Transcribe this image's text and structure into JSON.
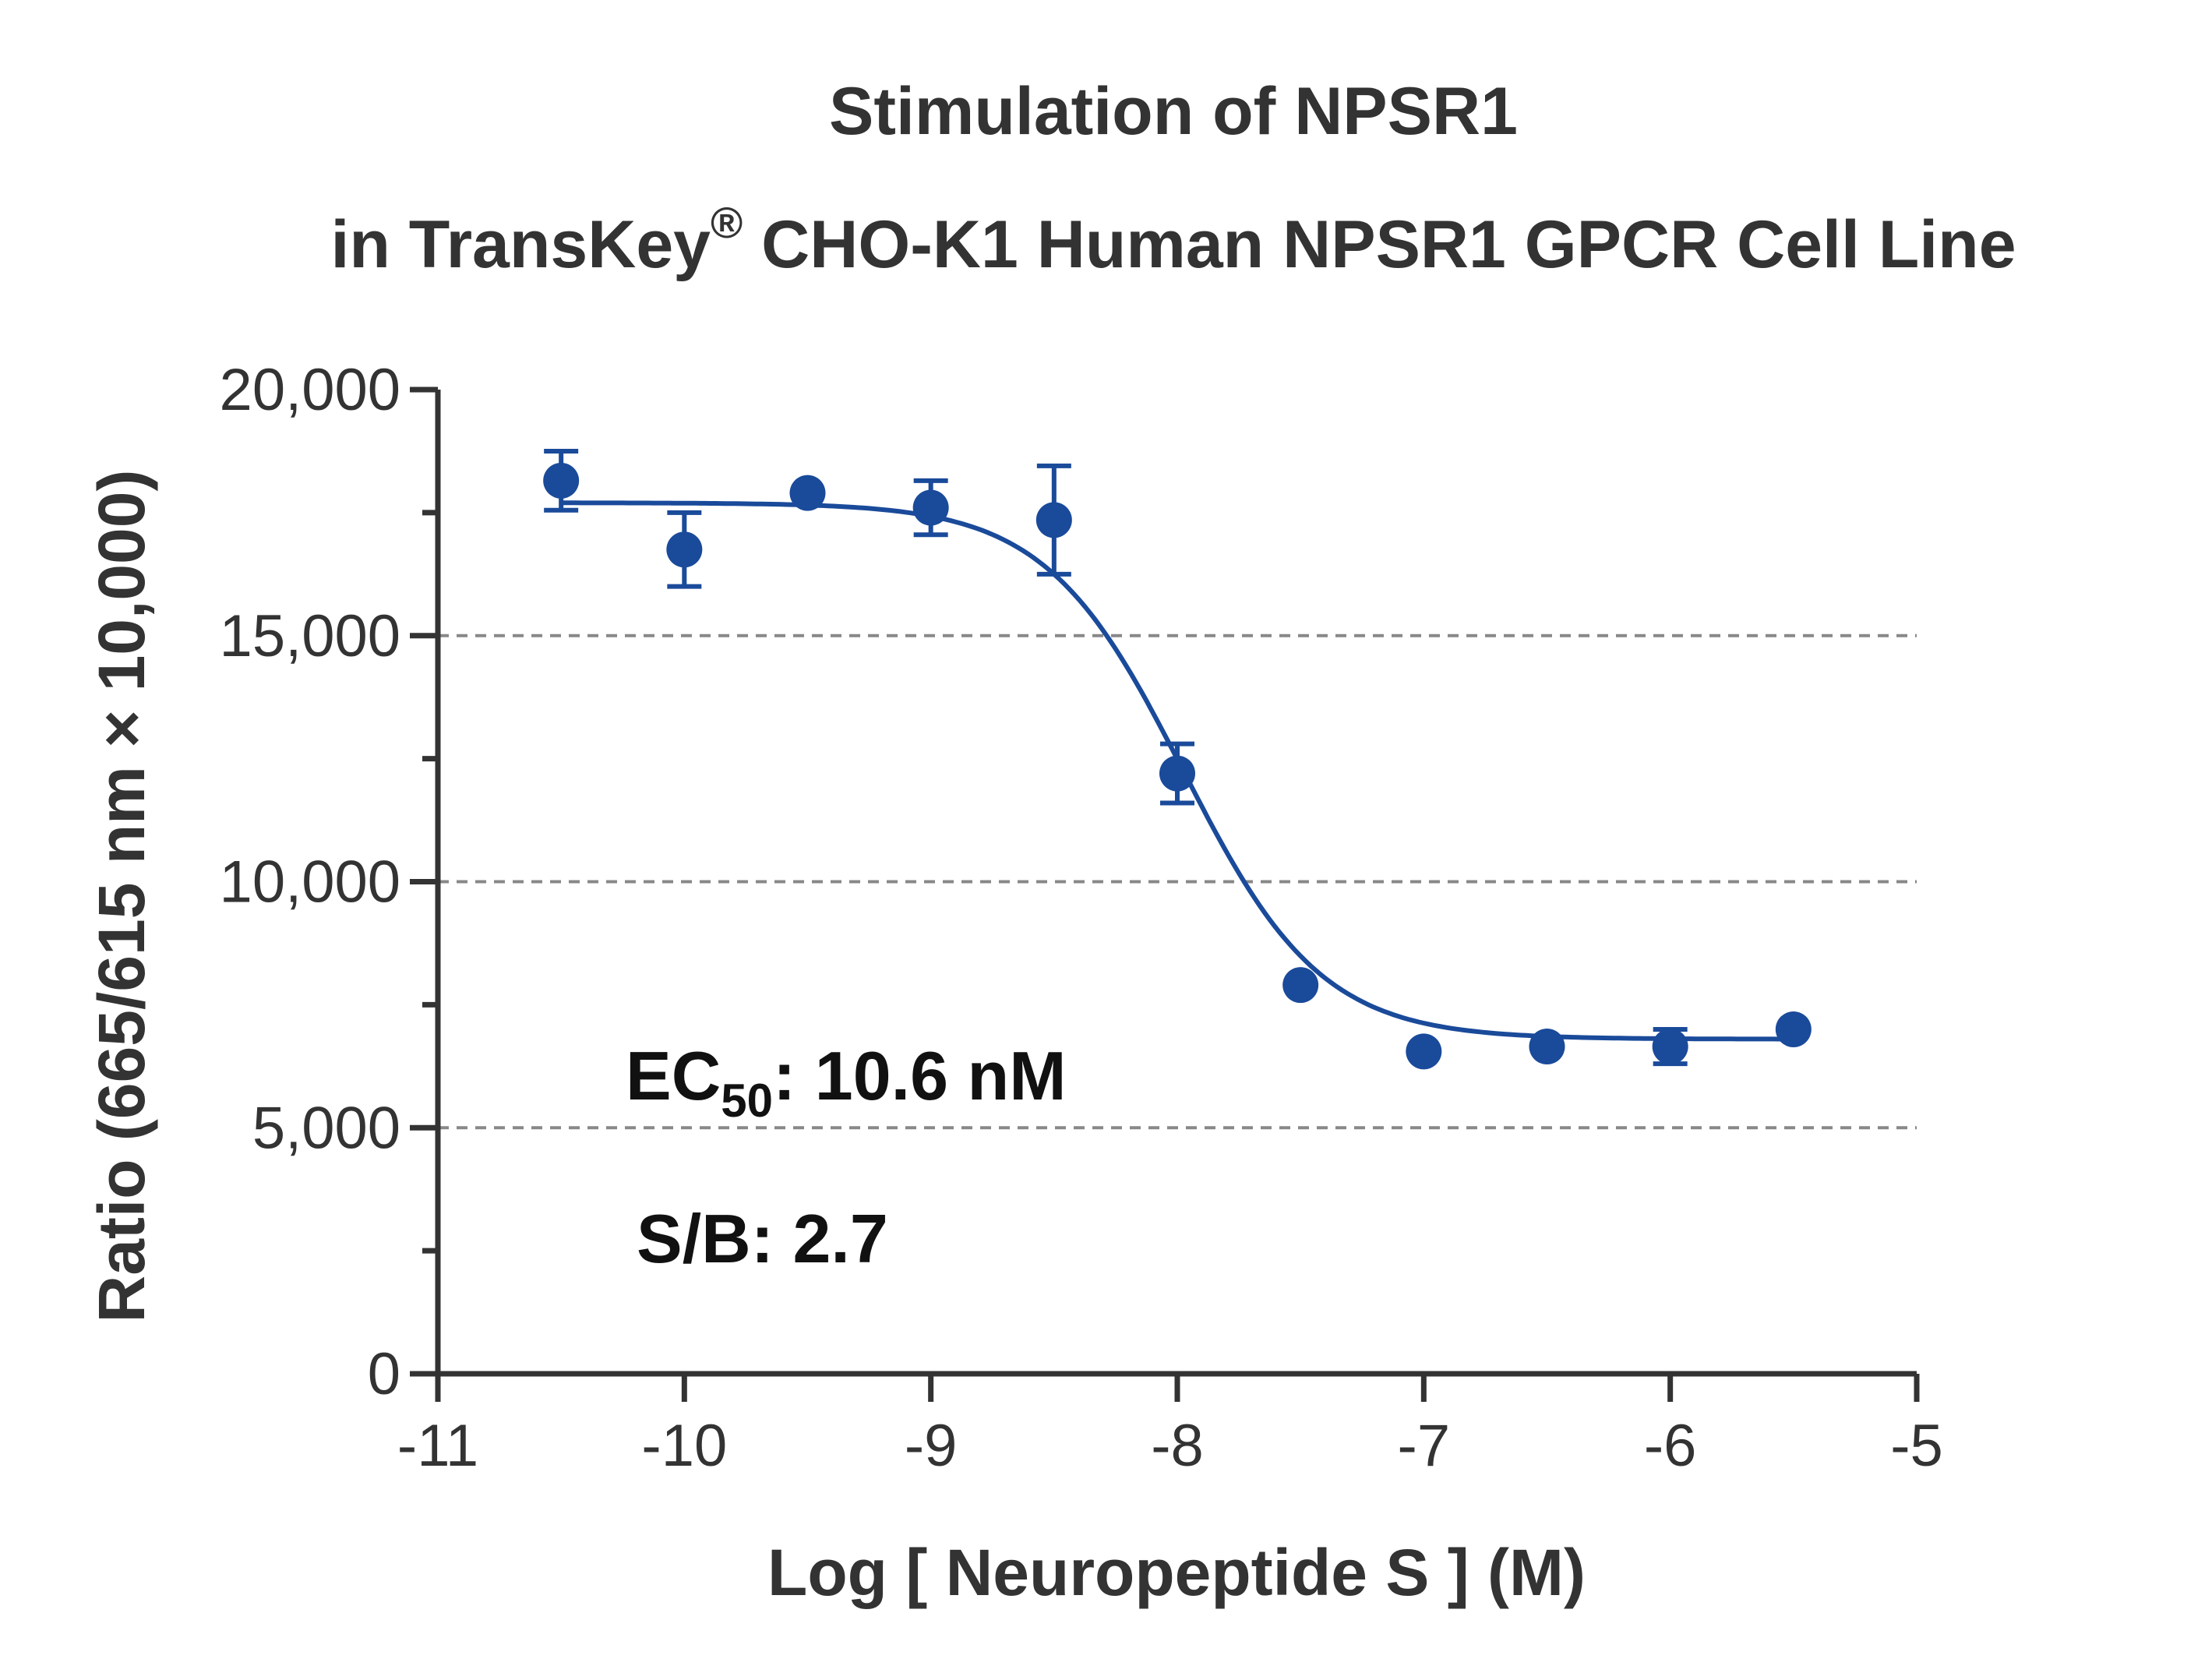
{
  "chart_data": {
    "type": "scatter",
    "title_line1": "Stimulation of  NPSR1",
    "title_line2_prefix": "in TransKey",
    "title_line2_sup": "®",
    "title_line2_suffix": " CHO-K1 Human NPSR1 GPCR Cell Line",
    "xlabel": "Log [ Neuropeptide S ]  (M)",
    "ylabel": "Ratio (665/615 nm × 10,000)",
    "xlim": [
      -11,
      -5
    ],
    "ylim": [
      0,
      20000
    ],
    "x_ticks": [
      -11,
      -10,
      -9,
      -8,
      -7,
      -6,
      -5
    ],
    "x_tick_labels": [
      "-11",
      "-10",
      "-9",
      "-8",
      "-7",
      "-6",
      "-5"
    ],
    "y_ticks": [
      0,
      5000,
      10000,
      15000,
      20000
    ],
    "y_tick_labels": [
      "0",
      "5,000",
      "10,000",
      "15,000",
      "20,000"
    ],
    "y_minor_ticks": [
      2500,
      7500,
      12500,
      17500
    ],
    "grid": "horizontal dashed at major y ticks",
    "colors": {
      "series": "#1a4a9a",
      "axis": "#333333",
      "grid": "#888888"
    },
    "series": [
      {
        "x": [
          -10.5,
          -10.0,
          -9.5,
          -9.0,
          -8.5,
          -8.0,
          -7.5,
          -7.0,
          -6.5,
          -6.0,
          -5.5
        ],
        "y": [
          18150,
          16750,
          17900,
          17600,
          17350,
          12200,
          7900,
          6550,
          6650,
          6650,
          7000
        ],
        "error": [
          600,
          750,
          0,
          550,
          1100,
          600,
          0,
          0,
          0,
          350,
          0
        ]
      }
    ],
    "fit": {
      "model": "four-parameter logistic",
      "top": 17700,
      "bottom": 6800,
      "log_ec50": -7.975,
      "hill_slope": -1.55,
      "x_range": [
        -10.5,
        -5.5
      ]
    },
    "annotations": {
      "ec50_prefix": "EC",
      "ec50_sub": "50",
      "ec50_value": ": 10.6 nM",
      "sb": "S/B: 2.7"
    }
  }
}
